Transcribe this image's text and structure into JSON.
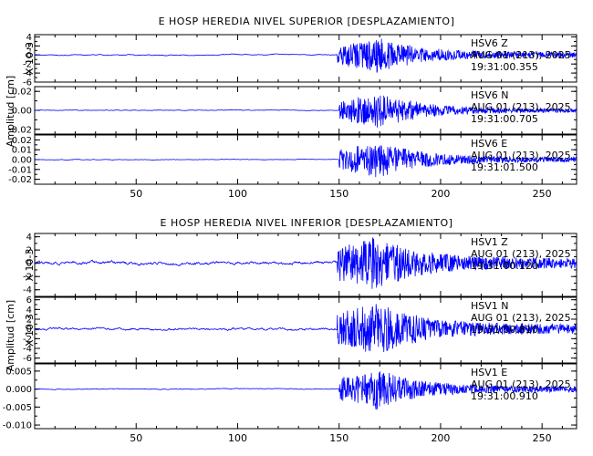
{
  "chart_data": [
    {
      "type": "line",
      "title": "E HOSP HEREDIA NIVEL SUPERIOR [DESPLAZAMIENTO]",
      "ylabel": "Amplitud [cm]",
      "xlim": [
        0,
        267
      ],
      "xticks": [
        "50",
        "100",
        "150",
        "200",
        "250"
      ],
      "x_tick_values": [
        50,
        100,
        150,
        200,
        250
      ],
      "color": "#0000ff",
      "panels": [
        {
          "channel": "HSV6",
          "component": "Z",
          "date": "AUG 01 (213), 2025",
          "time": "19:31:00.355",
          "scale_label": "X 10-3",
          "ylim": [
            -6,
            4.5
          ],
          "yticks": [
            "4",
            "2",
            "0",
            "-2",
            "-4",
            "-6"
          ],
          "y_tick_values": [
            4,
            2,
            0,
            -2,
            -4,
            -6
          ],
          "envelope": {
            "pre_noise": 0.4,
            "onset": 149,
            "peak_time": 168,
            "peak": 4.0,
            "coda": 0.6
          }
        },
        {
          "channel": "HSV6",
          "component": "N",
          "date": "AUG 01 (213), 2025",
          "time": "19:31:00.705",
          "scale_label": "",
          "ylim": [
            -0.025,
            0.025
          ],
          "yticks": [
            "0.02",
            "0.00",
            "-0.02"
          ],
          "y_tick_values": [
            0.02,
            0,
            -0.02
          ],
          "envelope": {
            "pre_noise": 0.0012,
            "onset": 150,
            "peak_time": 168,
            "peak": 0.02,
            "coda": 0.002
          }
        },
        {
          "channel": "HSV6",
          "component": "E",
          "date": "AUG 01 (213), 2025",
          "time": "19:31:01.500",
          "scale_label": "",
          "ylim": [
            -0.025,
            0.025
          ],
          "yticks": [
            "0.02",
            "0.01",
            "0.00",
            "-0.01",
            "-0.02"
          ],
          "y_tick_values": [
            0.02,
            0.01,
            0,
            -0.01,
            -0.02
          ],
          "envelope": {
            "pre_noise": 0.001,
            "onset": 150,
            "peak_time": 167,
            "peak": 0.02,
            "coda": 0.0025
          }
        }
      ]
    },
    {
      "type": "line",
      "title": "E HOSP HEREDIA NIVEL INFERIOR [DESPLAZAMIENTO]",
      "ylabel": "Amplitud [cm]",
      "xlim": [
        0,
        267
      ],
      "xticks": [
        "50",
        "100",
        "150",
        "200",
        "250"
      ],
      "x_tick_values": [
        50,
        100,
        150,
        200,
        250
      ],
      "color": "#0000ff",
      "panels": [
        {
          "channel": "HSV1",
          "component": "Z",
          "date": "AUG 01 (213), 2025",
          "time": "19:31:00.120",
          "scale_label": "X 10-3",
          "ylim": [
            -5,
            4.5
          ],
          "yticks": [
            "4",
            "2",
            "0",
            "-2",
            "-4"
          ],
          "y_tick_values": [
            4,
            2,
            0,
            -2,
            -4
          ],
          "envelope": {
            "pre_noise": 0.8,
            "onset": 149,
            "peak_time": 168,
            "peak": 4.0,
            "coda": 0.8
          }
        },
        {
          "channel": "HSV1",
          "component": "N",
          "date": "AUG 01 (213), 2025",
          "time": "19:31:00.810",
          "scale_label": "X 10-3",
          "ylim": [
            -7,
            6.5
          ],
          "yticks": [
            "6",
            "4",
            "2",
            "0",
            "-2",
            "-4",
            "-6"
          ],
          "y_tick_values": [
            6,
            4,
            2,
            0,
            -2,
            -4,
            -6
          ],
          "envelope": {
            "pre_noise": 0.8,
            "onset": 149,
            "peak_time": 168,
            "peak": 5.5,
            "coda": 1.0
          }
        },
        {
          "channel": "HSV1",
          "component": "E",
          "date": "AUG 01 (213), 2025",
          "time": "19:31:00.910",
          "scale_label": "",
          "ylim": [
            -0.011,
            0.007
          ],
          "yticks": [
            "0.005",
            "0.000",
            "-0.005",
            "-0.010"
          ],
          "y_tick_values": [
            0.005,
            0,
            -0.005,
            -0.01
          ],
          "envelope": {
            "pre_noise": 0.0004,
            "onset": 150,
            "peak_time": 167,
            "peak": 0.006,
            "coda": 0.0008
          }
        }
      ]
    }
  ]
}
